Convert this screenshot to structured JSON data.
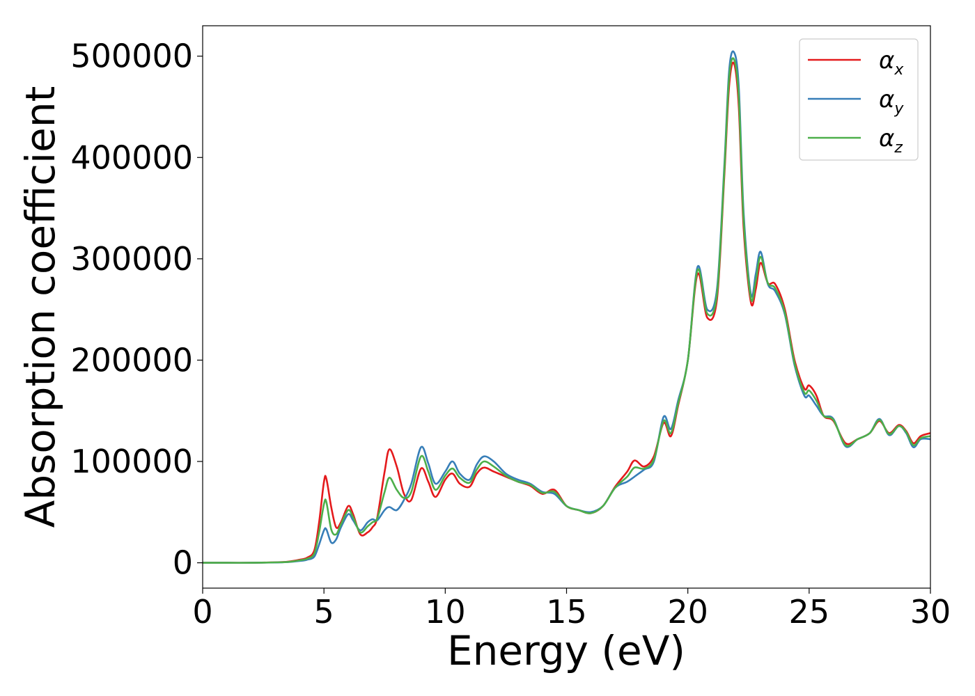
{
  "chart_data": {
    "type": "line",
    "title": "",
    "xlabel": "Energy (eV)",
    "ylabel": "Absorption coefficient",
    "xlim": [
      0,
      30
    ],
    "ylim": [
      -25000,
      530000
    ],
    "xticks": [
      0,
      5,
      10,
      15,
      20,
      25,
      30
    ],
    "xtick_labels": [
      "0",
      "5",
      "10",
      "15",
      "20",
      "25",
      "30"
    ],
    "yticks": [
      0,
      100000,
      200000,
      300000,
      400000,
      500000
    ],
    "ytick_labels": [
      "0",
      "100000",
      "200000",
      "300000",
      "400000",
      "500000"
    ],
    "grid": false,
    "legend_position": "top-right",
    "x": [
      0,
      1,
      2,
      3,
      3.5,
      4,
      4.3,
      4.6,
      4.8,
      5.0,
      5.1,
      5.3,
      5.5,
      5.7,
      6.0,
      6.2,
      6.5,
      6.8,
      7.0,
      7.2,
      7.5,
      7.7,
      8.0,
      8.3,
      8.6,
      9.0,
      9.3,
      9.6,
      10.0,
      10.3,
      10.6,
      11.0,
      11.3,
      11.6,
      12.0,
      12.5,
      13.0,
      13.5,
      14.0,
      14.5,
      15.0,
      15.5,
      16.0,
      16.5,
      17.0,
      17.5,
      17.8,
      18.2,
      18.6,
      19.0,
      19.3,
      19.6,
      20.0,
      20.4,
      20.8,
      21.2,
      21.5,
      21.7,
      21.9,
      22.1,
      22.3,
      22.6,
      22.8,
      23.0,
      23.3,
      23.6,
      24.0,
      24.4,
      24.8,
      25.0,
      25.3,
      25.6,
      26.0,
      26.5,
      27.0,
      27.5,
      27.9,
      28.3,
      28.7,
      29.0,
      29.3,
      29.6,
      30.0
    ],
    "series": [
      {
        "name": "α",
        "subscript": "x",
        "color": "#e41a1c",
        "values": [
          0,
          0,
          0,
          500,
          1000,
          3000,
          5000,
          12000,
          40000,
          80000,
          83000,
          55000,
          35000,
          40000,
          56000,
          48000,
          28000,
          30000,
          35000,
          45000,
          90000,
          112000,
          95000,
          68000,
          62000,
          93000,
          80000,
          65000,
          82000,
          88000,
          78000,
          75000,
          88000,
          94000,
          90000,
          85000,
          80000,
          76000,
          68000,
          72000,
          56000,
          52000,
          49000,
          56000,
          75000,
          90000,
          101000,
          95000,
          105000,
          138000,
          125000,
          155000,
          200000,
          285000,
          242000,
          260000,
          380000,
          470000,
          493000,
          450000,
          330000,
          257000,
          270000,
          296000,
          276000,
          275000,
          250000,
          200000,
          172000,
          175000,
          165000,
          145000,
          140000,
          118000,
          122000,
          128000,
          140000,
          128000,
          136000,
          130000,
          118000,
          125000,
          128000
        ]
      },
      {
        "name": "α",
        "subscript": "y",
        "color": "#377eb8",
        "values": [
          0,
          0,
          0,
          300,
          700,
          1800,
          3000,
          6000,
          18000,
          32000,
          33000,
          20000,
          23000,
          35000,
          48000,
          42000,
          32000,
          40000,
          43000,
          42000,
          52000,
          55000,
          52000,
          62000,
          78000,
          114000,
          98000,
          78000,
          90000,
          100000,
          88000,
          82000,
          97000,
          105000,
          100000,
          88000,
          82000,
          78000,
          70000,
          68000,
          56000,
          52000,
          50000,
          56000,
          74000,
          80000,
          85000,
          92000,
          100000,
          144000,
          132000,
          160000,
          200000,
          292000,
          250000,
          270000,
          390000,
          485000,
          504000,
          470000,
          345000,
          265000,
          285000,
          307000,
          275000,
          268000,
          245000,
          195000,
          165000,
          165000,
          155000,
          145000,
          142000,
          115000,
          122000,
          128000,
          142000,
          126000,
          135000,
          128000,
          114000,
          122000,
          122000
        ]
      },
      {
        "name": "α",
        "subscript": "z",
        "color": "#4daf4a",
        "values": [
          0,
          0,
          0,
          400,
          850,
          2400,
          4000,
          9000,
          30000,
          58000,
          60000,
          33000,
          28000,
          38000,
          52000,
          45000,
          30000,
          36000,
          40000,
          44000,
          70000,
          84000,
          72000,
          64000,
          70000,
          105000,
          90000,
          72000,
          86000,
          93000,
          84000,
          79000,
          92000,
          100000,
          95000,
          86000,
          80000,
          77000,
          69000,
          70000,
          56000,
          52000,
          49000,
          56000,
          74000,
          85000,
          94000,
          93000,
          102000,
          140000,
          128000,
          157000,
          200000,
          289000,
          246000,
          265000,
          385000,
          478000,
          497000,
          460000,
          338000,
          261000,
          278000,
          302000,
          276000,
          271000,
          247000,
          197000,
          168000,
          170000,
          160000,
          145000,
          141000,
          116000,
          122000,
          128000,
          141000,
          127000,
          135000,
          129000,
          116000,
          123000,
          125000
        ]
      }
    ]
  }
}
